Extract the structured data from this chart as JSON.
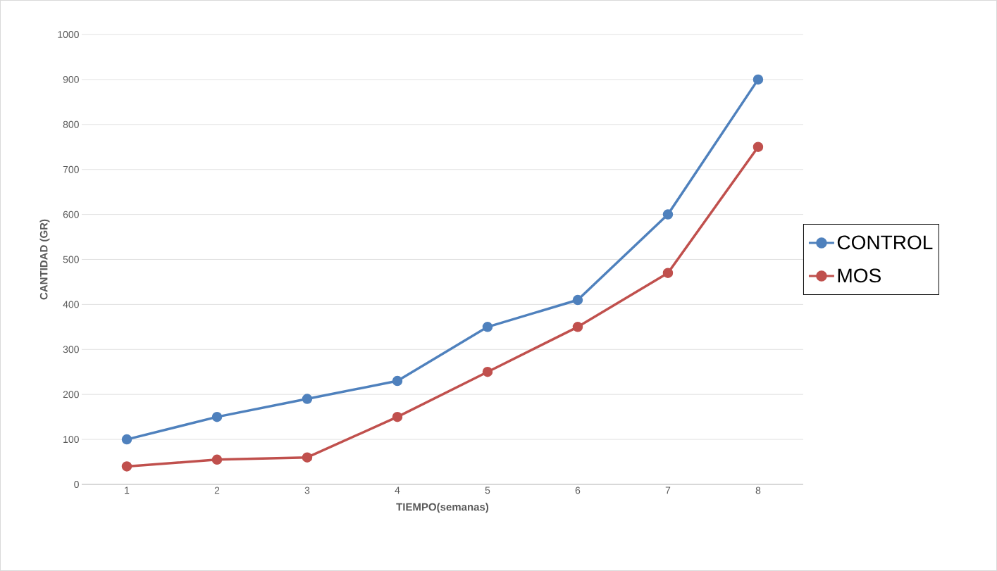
{
  "chart_data": {
    "type": "line",
    "xlabel": "TIEMPO(semanas)",
    "ylabel": "CANTIDAD (GR)",
    "categories": [
      "1",
      "2",
      "3",
      "4",
      "5",
      "6",
      "7",
      "8"
    ],
    "series": [
      {
        "name": "CONTROL",
        "color": "#4f81bd",
        "values": [
          100,
          150,
          190,
          230,
          350,
          410,
          600,
          900
        ]
      },
      {
        "name": "MOS",
        "color": "#c0504d",
        "values": [
          40,
          55,
          60,
          150,
          250,
          350,
          470,
          750
        ]
      }
    ],
    "ylim": [
      0,
      1000
    ],
    "yticks": [
      0,
      100,
      200,
      300,
      400,
      500,
      600,
      700,
      800,
      900,
      1000
    ],
    "grid": "y",
    "legend": "right",
    "marker": "circle",
    "line_style": "solid"
  }
}
